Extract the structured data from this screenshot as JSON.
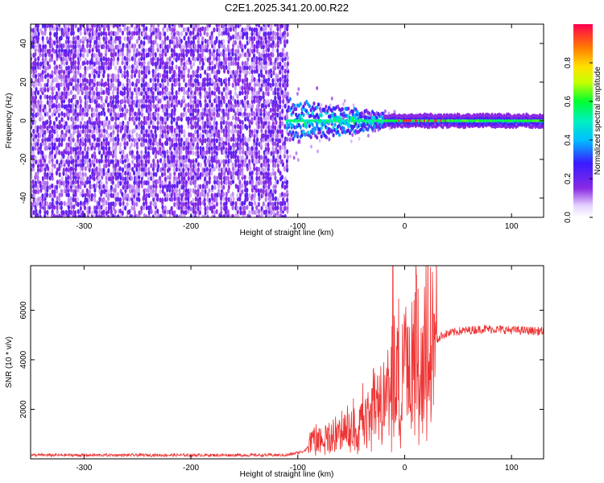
{
  "title": "C2E1.2025.341.20.00.R22",
  "chart_data": [
    {
      "type": "heatmap",
      "name": "spectrogram",
      "xlabel": "Height of straight line (km)",
      "ylabel": "Frequency (Hz)",
      "xlim": [
        -350,
        130
      ],
      "ylim": [
        -50,
        50
      ],
      "xticks": [
        -300,
        -200,
        -100,
        0,
        100
      ],
      "yticks": [
        -40,
        -20,
        0,
        20,
        40
      ],
      "noise_region_x": [
        -350,
        -110
      ],
      "signal_band_hz": 0,
      "colorbar": {
        "label": "Normalized spectral amplitude",
        "range": [
          0.0,
          1.0
        ],
        "ticks": [
          "0.0",
          "0.2",
          "0.4",
          "0.6",
          "0.8"
        ]
      }
    },
    {
      "type": "line",
      "name": "snr",
      "xlabel": "Height of straight line (km)",
      "ylabel": "SNR (10 * v/v)",
      "xlim": [
        -350,
        130
      ],
      "ylim": [
        0,
        7800
      ],
      "xticks": [
        -300,
        -200,
        -100,
        0,
        100
      ],
      "yticks": [
        2000,
        4000,
        6000
      ],
      "color": "#ee3333",
      "profile": [
        {
          "x": -350,
          "y": 150
        },
        {
          "x": -110,
          "y": 150
        },
        {
          "x": -95,
          "y": 300
        },
        {
          "x": -85,
          "y": 700
        },
        {
          "x": -70,
          "y": 900
        },
        {
          "x": -55,
          "y": 1000
        },
        {
          "x": -40,
          "y": 1400
        },
        {
          "x": -25,
          "y": 1800
        },
        {
          "x": -10,
          "y": 2800
        },
        {
          "x": 10,
          "y": 3900
        },
        {
          "x": 25,
          "y": 4600
        },
        {
          "x": 35,
          "y": 5000
        },
        {
          "x": 50,
          "y": 5150
        },
        {
          "x": 75,
          "y": 5250
        },
        {
          "x": 100,
          "y": 5200
        },
        {
          "x": 130,
          "y": 5150
        }
      ],
      "spikes": [
        {
          "x": -11,
          "y": 7800
        },
        {
          "x": 11,
          "y": 7400
        }
      ]
    }
  ]
}
